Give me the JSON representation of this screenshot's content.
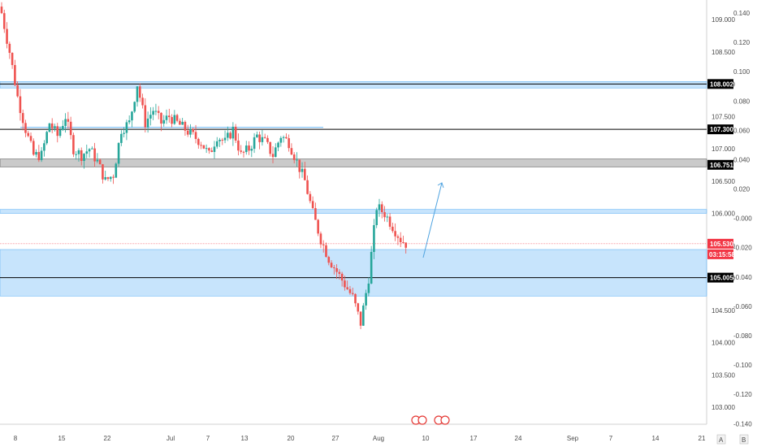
{
  "chart_data": {
    "type": "candlestick",
    "left_axis": {
      "ticks": [
        "109.000",
        "108.500",
        "108.000",
        "107.500",
        "107.000",
        "106.500",
        "106.000",
        "105.500",
        "105.000",
        "104.500",
        "104.000",
        "103.500",
        "103.000"
      ],
      "range": [
        102.85,
        109.3
      ]
    },
    "right_axis": {
      "ticks": [
        "0.140",
        "0.120",
        "0.100",
        "0.080",
        "0.060",
        "0.040",
        "0.020",
        "-0.000",
        "-0.020",
        "-0.040",
        "-0.060",
        "-0.080",
        "-0.100",
        "-0.120",
        "-0.140"
      ]
    },
    "x_ticks": [
      "8",
      "15",
      "22",
      "Jul",
      "7",
      "13",
      "20",
      "27",
      "Aug",
      "10",
      "17",
      "24",
      "Sep",
      "7",
      "14",
      "21"
    ],
    "price_tags": [
      {
        "label": "108.002",
        "value": 108.002,
        "color": "#000000"
      },
      {
        "label": "107.300",
        "value": 107.3,
        "color": "#000000"
      },
      {
        "label": "106.751",
        "value": 106.751,
        "color": "#000000"
      },
      {
        "label": "105.530",
        "value": 105.53,
        "color": "#f23645"
      },
      {
        "label": "105.005",
        "value": 105.005,
        "color": "#000000"
      }
    ],
    "countdown": "03:15:58",
    "horizontal_lines": [
      {
        "value": 108.002,
        "color": "#000000"
      },
      {
        "value": 107.3,
        "color": "#000000"
      },
      {
        "value": 105.005,
        "color": "#000000"
      }
    ],
    "zones": [
      {
        "low": 107.94,
        "high": 108.04,
        "color": "#90caf9"
      },
      {
        "low": 106.72,
        "high": 106.84,
        "color": "#9e9e9e"
      },
      {
        "low": 106.0,
        "high": 106.06,
        "color": "#90caf9"
      },
      {
        "low": 104.72,
        "high": 105.44,
        "color": "#90caf9"
      }
    ],
    "candles_desc": "daily-ish candles from early June to early August",
    "close_path": [
      109.1,
      108.5,
      107.8,
      107.3,
      106.9,
      106.9,
      107.4,
      107.2,
      107.5,
      107.0,
      106.9,
      107.0,
      106.8,
      106.5,
      106.6,
      107.3,
      107.4,
      108.0,
      107.4,
      107.6,
      107.4,
      107.5,
      107.4,
      107.3,
      107.2,
      107.1,
      106.9,
      107.2,
      107.1,
      107.3,
      106.9,
      107.0,
      107.2,
      107.1,
      106.9,
      107.2,
      107.1,
      106.8,
      106.5,
      106.0,
      105.6,
      105.3,
      105.1,
      104.9,
      104.7,
      104.3,
      105.0,
      106.1,
      106.0,
      105.8,
      105.6,
      105.5
    ],
    "annotation_arrow": {
      "from": [
        521,
        317
      ],
      "to": [
        544,
        225
      ]
    }
  }
}
